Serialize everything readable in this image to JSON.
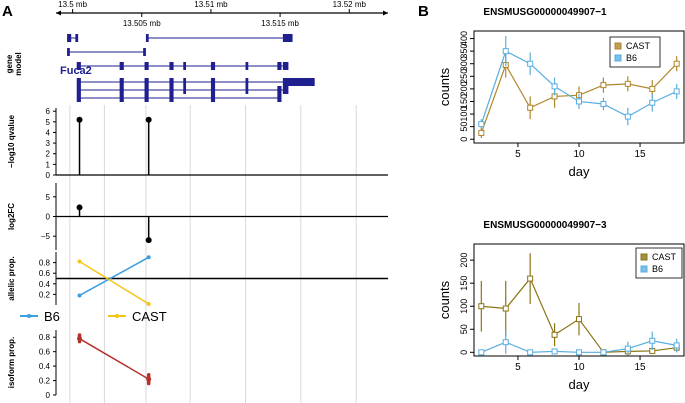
{
  "chart_data": {
    "panel_a": {
      "label": "A",
      "genome_axis": {
        "ticks": [
          {
            "label": "13.5 mb",
            "pos": 13.5
          },
          {
            "label": "13.505 mb",
            "pos": 13.505
          },
          {
            "label": "13.51 mb",
            "pos": 13.51
          },
          {
            "label": "13.515 mb",
            "pos": 13.515
          },
          {
            "label": "13.52 mb",
            "pos": 13.52
          }
        ],
        "range": [
          13.4988,
          13.5228
        ]
      },
      "gene_model": {
        "track_label": "gene model",
        "gene_name": "Fuca2",
        "color": "#1f1f8f",
        "transcripts": [
          {
            "start": 13.4996,
            "end": 13.5004,
            "exons": [
              [
                13.4996,
                13.4999
              ],
              [
                13.5002,
                13.5004
              ]
            ]
          },
          {
            "start": 13.4996,
            "end": 13.5052,
            "exons": [
              [
                13.4996,
                13.4998
              ],
              [
                13.5051,
                13.5053
              ]
            ]
          },
          {
            "start": 13.5053,
            "end": 13.5159,
            "exons": [
              [
                13.5053,
                13.5055
              ],
              [
                13.5152,
                13.5159
              ]
            ]
          },
          {
            "start": 13.5003,
            "end": 13.5156,
            "exons": [
              [
                13.5003,
                13.5006
              ],
              [
                13.5034,
                13.5037
              ],
              [
                13.5052,
                13.5055
              ],
              [
                13.507,
                13.5073
              ],
              [
                13.508,
                13.5082
              ],
              [
                13.51,
                13.5103
              ],
              [
                13.5125,
                13.5127
              ],
              [
                13.5148,
                13.5151
              ],
              [
                13.5152,
                13.5156
              ]
            ]
          },
          {
            "start": 13.5003,
            "end": 13.5175,
            "exons": [
              [
                13.5003,
                13.5006
              ],
              [
                13.5034,
                13.5037
              ],
              [
                13.5052,
                13.5055
              ],
              [
                13.507,
                13.5073
              ],
              [
                13.508,
                13.5082
              ],
              [
                13.51,
                13.5103
              ],
              [
                13.5125,
                13.5127
              ],
              [
                13.5152,
                13.5175
              ]
            ]
          },
          {
            "start": 13.5003,
            "end": 13.5156,
            "exons": [
              [
                13.5003,
                13.5006
              ],
              [
                13.5034,
                13.5037
              ],
              [
                13.5052,
                13.5055
              ],
              [
                13.507,
                13.5073
              ],
              [
                13.508,
                13.5082
              ],
              [
                13.51,
                13.5103
              ],
              [
                13.5125,
                13.5127
              ],
              [
                13.5148,
                13.5151
              ],
              [
                13.5152,
                13.5156
              ]
            ]
          },
          {
            "start": 13.5003,
            "end": 13.5151,
            "exons": [
              [
                13.5003,
                13.5006
              ],
              [
                13.5034,
                13.5037
              ],
              [
                13.5052,
                13.5055
              ],
              [
                13.507,
                13.5073
              ],
              [
                13.51,
                13.5103
              ],
              [
                13.5148,
                13.5151
              ]
            ]
          }
        ]
      },
      "qvalue_track": {
        "ylabel": "−log10 qvalue",
        "yticks": [
          0,
          1,
          2,
          3,
          4,
          5,
          6
        ],
        "ylim": [
          0,
          6.3
        ],
        "lollipops": [
          {
            "x": 13.5005,
            "y": 5.2
          },
          {
            "x": 13.5055,
            "y": 5.2
          }
        ]
      },
      "log2fc_track": {
        "ylabel": "log2FC",
        "yticks": [
          -5,
          0,
          5
        ],
        "ylim": [
          -8.5,
          8.5
        ],
        "lollipops": [
          {
            "x": 13.5005,
            "y": 2.3
          },
          {
            "x": 13.5055,
            "y": -6.0
          }
        ]
      },
      "allelic_track": {
        "ylabel": "allelic prop.",
        "yticks": [
          0.2,
          0.4,
          0.6,
          0.8
        ],
        "ylim": [
          0,
          1
        ],
        "hline": 0.5,
        "series": [
          {
            "name": "B6",
            "color": "#3b9ee0",
            "points": [
              {
                "x": 13.5005,
                "y": 0.18
              },
              {
                "x": 13.5055,
                "y": 0.9
              }
            ]
          },
          {
            "name": "CAST",
            "color": "#f5c518",
            "points": [
              {
                "x": 13.5005,
                "y": 0.82
              },
              {
                "x": 13.5055,
                "y": 0.02
              }
            ]
          }
        ]
      },
      "legend": [
        {
          "label": "B6",
          "color": "#3b9ee0"
        },
        {
          "label": "CAST",
          "color": "#f5c518"
        }
      ],
      "isoform_track": {
        "ylabel": "isoform prop.",
        "yticks": [
          0,
          0.2,
          0.4,
          0.6,
          0.8
        ],
        "ylim": [
          0,
          0.9
        ],
        "color": "#b5312a",
        "points": [
          {
            "x": 13.5005,
            "y": 0.78
          },
          {
            "x": 13.5055,
            "y": 0.22
          }
        ],
        "replicates_left": [
          0.74,
          0.77,
          0.79,
          0.81,
          0.83
        ],
        "replicates_right": [
          0.16,
          0.18,
          0.2,
          0.23,
          0.26,
          0.28
        ]
      }
    },
    "panel_b": {
      "label": "B",
      "plots": [
        {
          "type": "line",
          "title": "ENSMUSG00000049907−1",
          "xlabel": "day",
          "ylabel": "counts",
          "xlim": [
            1.4,
            18.6
          ],
          "ylim": [
            -15,
            430
          ],
          "xticks": [
            5,
            10,
            15
          ],
          "yticks": [
            0,
            50,
            100,
            150,
            200,
            250,
            300,
            350,
            400
          ],
          "legend_position": "top-right",
          "series": [
            {
              "name": "CAST",
              "color": "#b0862a",
              "marker": "square",
              "x": [
                2,
                4,
                6,
                8,
                10,
                12,
                14,
                16,
                18
              ],
              "y": [
                25,
                295,
                125,
                170,
                175,
                215,
                220,
                200,
                300
              ],
              "err": [
                20,
                50,
                45,
                45,
                35,
                30,
                30,
                35,
                30
              ]
            },
            {
              "name": "B6",
              "color": "#5aaee0",
              "marker": "square",
              "x": [
                2,
                4,
                6,
                8,
                10,
                12,
                14,
                16,
                18
              ],
              "y": [
                60,
                350,
                300,
                210,
                150,
                140,
                90,
                145,
                190
              ],
              "err": [
                20,
                60,
                45,
                35,
                30,
                25,
                35,
                35,
                30
              ]
            }
          ]
        },
        {
          "type": "line",
          "title": "ENSMUSG00000049907−3",
          "xlabel": "day",
          "ylabel": "counts",
          "xlim": [
            1.4,
            18.6
          ],
          "ylim": [
            -8,
            235
          ],
          "xticks": [
            5,
            10,
            15
          ],
          "yticks": [
            0,
            50,
            100,
            150,
            200
          ],
          "legend_position": "top-right",
          "series": [
            {
              "name": "CAST",
              "color": "#8b7414",
              "marker": "square",
              "x": [
                2,
                4,
                6,
                8,
                10,
                12,
                14,
                16,
                18
              ],
              "y": [
                100,
                95,
                160,
                38,
                72,
                0,
                2,
                3,
                10
              ],
              "err": [
                55,
                60,
                55,
                25,
                35,
                2,
                2,
                3,
                10
              ]
            },
            {
              "name": "B6",
              "color": "#5aaee0",
              "marker": "square",
              "x": [
                2,
                4,
                6,
                8,
                10,
                12,
                14,
                16,
                18
              ],
              "y": [
                0,
                22,
                0,
                2,
                0,
                0,
                8,
                25,
                15
              ],
              "err": [
                2,
                25,
                2,
                2,
                2,
                2,
                15,
                20,
                15
              ]
            }
          ]
        }
      ]
    }
  }
}
